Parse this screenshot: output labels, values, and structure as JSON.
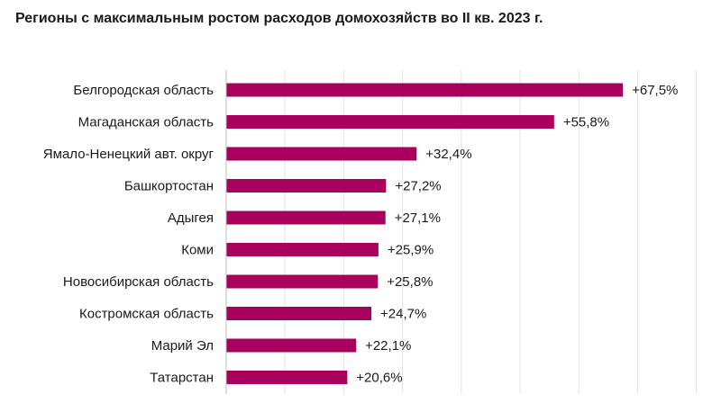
{
  "title": "Регионы с максимальным ростом расходов домохозяйств во II кв. 2023 г.",
  "colors": {
    "bar": "#a8005c",
    "grid": "#e3e3e3",
    "text": "#1a1a1a"
  },
  "chart_data": {
    "type": "bar",
    "orientation": "horizontal",
    "title": "Регионы с максимальным ростом расходов домохозяйств во II кв. 2023 г.",
    "categories": [
      "Белгородская область",
      "Магаданская область",
      "Ямало-Ненецкий авт. округ",
      "Башкортостан",
      "Адыгея",
      "Коми",
      "Новосибирская область",
      "Костромская область",
      "Марий Эл",
      "Татарстан"
    ],
    "values": [
      67.5,
      55.8,
      32.4,
      27.2,
      27.1,
      25.9,
      25.8,
      24.7,
      22.1,
      20.6
    ],
    "value_labels": [
      "+67,5%",
      "+55,8%",
      "+32,4%",
      "+27,2%",
      "+27,1%",
      "+25,9%",
      "+25,8%",
      "+24,7%",
      "+22,1%",
      "+20,6%"
    ],
    "xlim": [
      0,
      80
    ],
    "grid": true,
    "legend": "none"
  }
}
